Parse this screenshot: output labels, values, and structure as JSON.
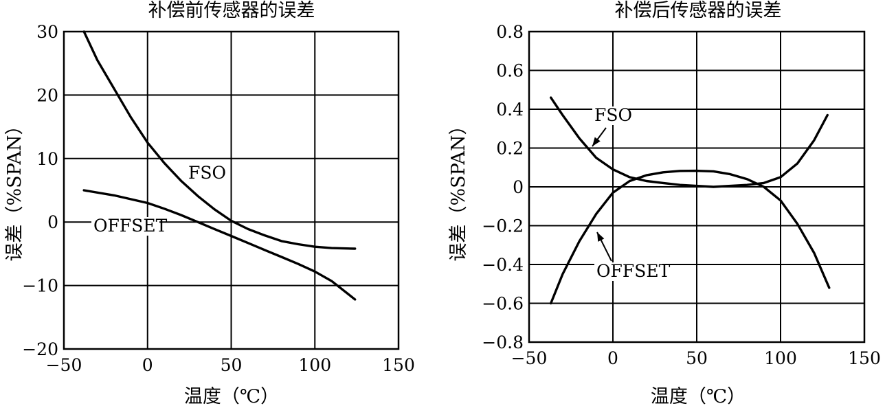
{
  "chart_data": [
    {
      "type": "line",
      "title": "补偿前传感器的误差",
      "xlabel": "温度（℃）",
      "ylabel": "误差（%SPAN）",
      "xlim": [
        -50,
        150
      ],
      "ylim": [
        -20,
        30
      ],
      "xticks": [
        -50,
        0,
        50,
        100,
        150
      ],
      "yticks": [
        -20,
        -10,
        0,
        10,
        20,
        30
      ],
      "xtick_labels": [
        "−50",
        "0",
        "50",
        "100",
        "150"
      ],
      "ytick_labels": [
        "−20",
        "−10",
        "0",
        "10",
        "20",
        "30"
      ],
      "grid": true,
      "series": [
        {
          "name": "FSO",
          "x": [
            -38,
            -30,
            -20,
            -10,
            0,
            10,
            20,
            30,
            40,
            50,
            60,
            70,
            80,
            90,
            100,
            110,
            124
          ],
          "y": [
            30,
            25.5,
            21,
            16.5,
            12.5,
            9.3,
            6.5,
            4.1,
            2,
            0.2,
            -1.1,
            -2.1,
            -3,
            -3.5,
            -3.9,
            -4.1,
            -4.2
          ]
        },
        {
          "name": "OFFSET",
          "x": [
            -38,
            -20,
            0,
            10,
            20,
            30,
            40,
            50,
            60,
            70,
            80,
            90,
            100,
            110,
            124
          ],
          "y": [
            5,
            4.2,
            3,
            2.1,
            1.1,
            0,
            -1.1,
            -2.2,
            -3.3,
            -4.4,
            -5.5,
            -6.6,
            -7.8,
            -9.3,
            -12.2
          ]
        }
      ]
    },
    {
      "type": "line",
      "title": "补偿后传感器的误差",
      "xlabel": "温度（℃）",
      "ylabel": "误差（%SPAN）",
      "xlim": [
        -50,
        150
      ],
      "ylim": [
        -0.8,
        0.8
      ],
      "xticks": [
        -50,
        0,
        50,
        100,
        150
      ],
      "yticks": [
        -0.8,
        -0.6,
        -0.4,
        -0.2,
        0,
        0.2,
        0.4,
        0.6,
        0.8
      ],
      "xtick_labels": [
        "−50",
        "0",
        "50",
        "100",
        "150"
      ],
      "ytick_labels": [
        "−0.8",
        "−0.6",
        "−0.4",
        "−0.2",
        "0",
        "0.2",
        "0.4",
        "0.6",
        "0.8"
      ],
      "grid": true,
      "series": [
        {
          "name": "FSO",
          "x": [
            -37,
            -30,
            -20,
            -10,
            0,
            10,
            20,
            30,
            40,
            50,
            60,
            70,
            80,
            90,
            100,
            110,
            120,
            128
          ],
          "y": [
            0.46,
            0.37,
            0.25,
            0.15,
            0.09,
            0.05,
            0.03,
            0.02,
            0.01,
            0.005,
            0.0,
            0.005,
            0.01,
            0.02,
            0.05,
            0.12,
            0.24,
            0.37
          ]
        },
        {
          "name": "OFFSET",
          "x": [
            -37,
            -30,
            -20,
            -10,
            0,
            10,
            20,
            30,
            40,
            50,
            60,
            70,
            80,
            90,
            100,
            110,
            120,
            129
          ],
          "y": [
            -0.6,
            -0.45,
            -0.28,
            -0.14,
            -0.03,
            0.03,
            0.06,
            0.075,
            0.082,
            0.083,
            0.08,
            0.065,
            0.04,
            0.0,
            -0.07,
            -0.19,
            -0.34,
            -0.52
          ]
        }
      ]
    }
  ]
}
